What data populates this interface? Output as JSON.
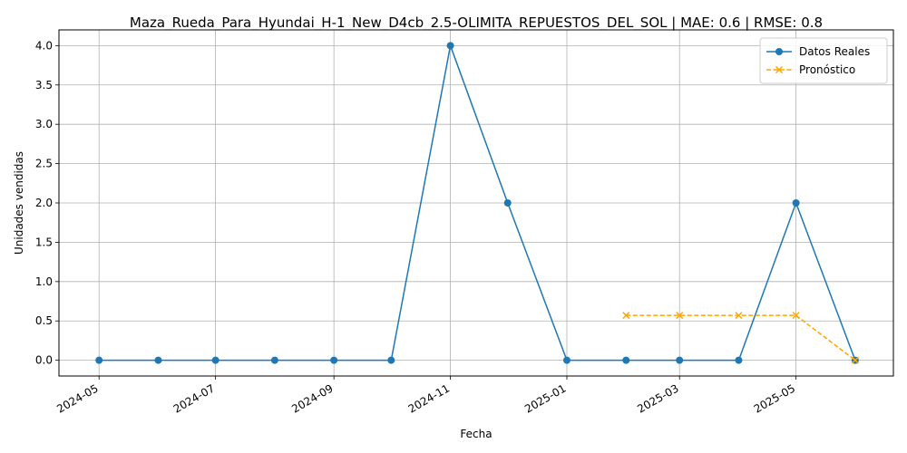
{
  "chart_data": {
    "type": "line",
    "title": "Maza_Rueda_Para_Hyundai_H-1_New_D4cb_2.5-OLIMITA_REPUESTOS_DEL_SOL | MAE: 0.6 | RMSE: 0.8",
    "xlabel": "Fecha",
    "ylabel": "Unidades vendidas",
    "ylim": [
      -0.2,
      4.2
    ],
    "xlim": [
      "2024-04-10",
      "2025-06-21"
    ],
    "grid": true,
    "legend_position": "top-right",
    "x_ticks": [
      "2024-05",
      "2024-07",
      "2024-09",
      "2024-11",
      "2025-01",
      "2025-03",
      "2025-05"
    ],
    "y_ticks": [
      "0.0",
      "0.5",
      "1.0",
      "1.5",
      "2.0",
      "2.5",
      "3.0",
      "3.5",
      "4.0"
    ],
    "series": [
      {
        "name": "Datos Reales",
        "color": "#1f77b4",
        "style": "solid",
        "marker": "circle",
        "x": [
          "2024-05-01",
          "2024-06-01",
          "2024-07-01",
          "2024-08-01",
          "2024-09-01",
          "2024-10-01",
          "2024-11-01",
          "2024-12-01",
          "2025-01-01",
          "2025-02-01",
          "2025-03-01",
          "2025-04-01",
          "2025-05-01",
          "2025-06-01"
        ],
        "values": [
          0,
          0,
          0,
          0,
          0,
          0,
          4,
          2,
          0,
          0,
          0,
          0,
          2,
          0
        ]
      },
      {
        "name": "Pronóstico",
        "color": "#ffa500",
        "style": "dashed",
        "marker": "x",
        "x": [
          "2025-02-01",
          "2025-03-01",
          "2025-04-01",
          "2025-05-01",
          "2025-06-01"
        ],
        "values": [
          0.57,
          0.57,
          0.57,
          0.57,
          0.0
        ]
      }
    ]
  }
}
